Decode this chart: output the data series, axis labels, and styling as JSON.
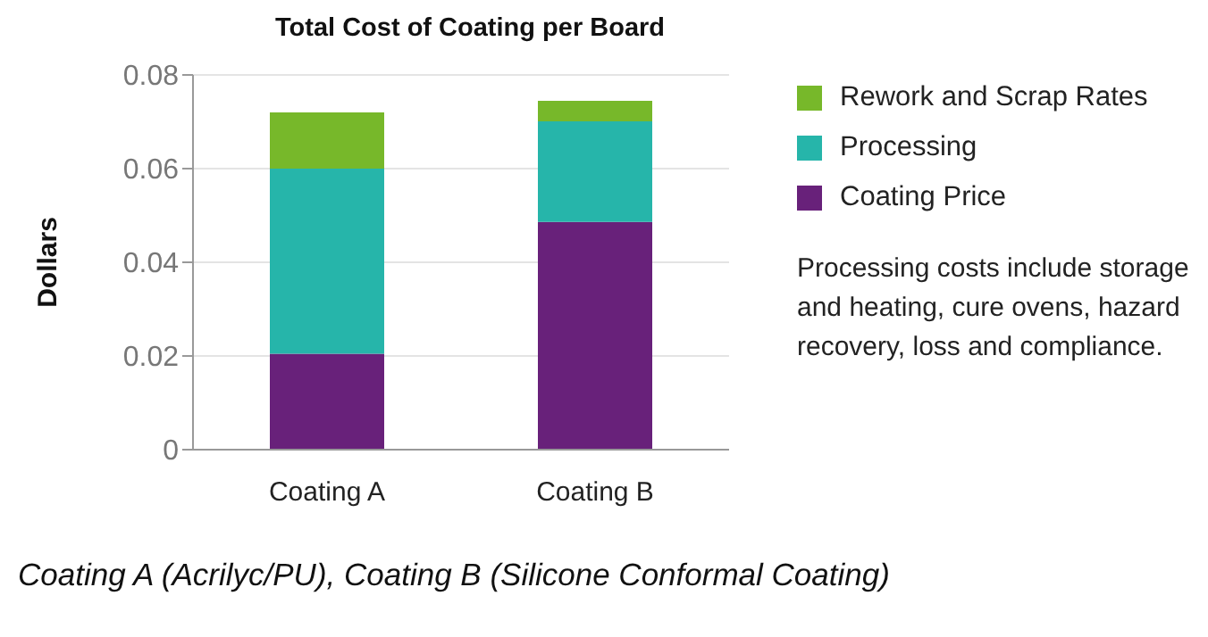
{
  "chart_data": {
    "type": "bar",
    "title": "Total Cost of Coating per Board",
    "ylabel": "Dollars",
    "categories": [
      "Coating A",
      "Coating B"
    ],
    "stacked": true,
    "series": [
      {
        "name": "Coating Price",
        "color": "#68217a",
        "values": [
          0.0205,
          0.0486
        ]
      },
      {
        "name": "Processing",
        "color": "#26b5aa",
        "values": [
          0.0395,
          0.0215
        ]
      },
      {
        "name": "Rework and Scrap Rates",
        "color": "#77b82a",
        "values": [
          0.012,
          0.0044
        ]
      }
    ],
    "ylim": [
      0,
      0.08
    ],
    "yticks": [
      0,
      0.02,
      0.04,
      0.06,
      0.08
    ],
    "grid": "y",
    "legend": "right",
    "annotations": [
      "Processing costs include storage and heating, cure ovens, hazard recovery, loss and compliance.",
      "Coating A (Acrilyc/PU), Coating B (Silicone Conformal Coating)"
    ]
  }
}
